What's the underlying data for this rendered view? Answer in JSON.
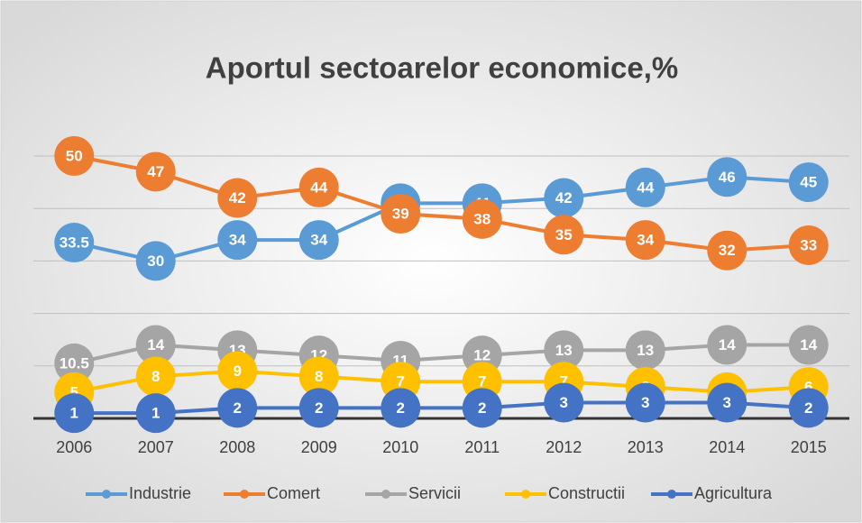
{
  "chart_data": {
    "type": "line",
    "title": "Aportul sectoarelor economice,%",
    "categories": [
      "2006",
      "2007",
      "2008",
      "2009",
      "2010",
      "2011",
      "2012",
      "2013",
      "2014",
      "2015"
    ],
    "series": [
      {
        "name": "Industrie",
        "color": "#5b9bd5",
        "values": [
          33.5,
          30,
          34,
          34,
          41,
          41,
          42,
          44,
          46,
          45
        ]
      },
      {
        "name": "Comert",
        "color": "#ed7d31",
        "values": [
          50,
          47,
          42,
          44,
          39,
          38,
          35,
          34,
          32,
          33
        ]
      },
      {
        "name": "Servicii",
        "color": "#a5a5a5",
        "values": [
          10.5,
          14,
          13,
          12,
          11,
          12,
          13,
          13,
          14,
          14
        ]
      },
      {
        "name": "Constructii",
        "color": "#ffc000",
        "values": [
          5,
          8,
          9,
          8,
          7,
          7,
          7,
          6,
          5,
          6
        ]
      },
      {
        "name": "Agricultura",
        "color": "#4472c4",
        "values": [
          1,
          1,
          2,
          2,
          2,
          2,
          3,
          3,
          3,
          2
        ]
      }
    ],
    "ylim": [
      0,
      50
    ],
    "yticks": [
      0,
      10,
      20,
      30,
      40,
      50
    ],
    "grid": true,
    "legend": "bottom"
  }
}
